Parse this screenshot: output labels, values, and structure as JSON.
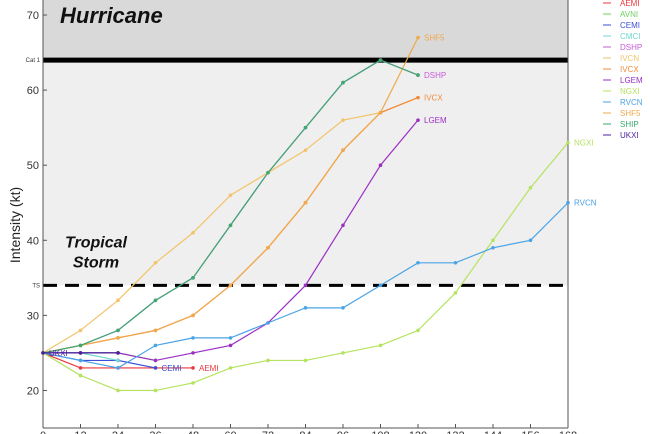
{
  "chart_data": {
    "type": "line",
    "ylabel": "Intensity (kt)",
    "xlim": [
      0,
      168
    ],
    "ylim": [
      15,
      72
    ],
    "x_ticks": [
      "0",
      "12",
      "24",
      "36",
      "48",
      "60",
      "72",
      "84",
      "96",
      "108",
      "120",
      "132",
      "144",
      "156",
      "168"
    ],
    "y_ticks": [
      "20",
      "30",
      "40",
      "50",
      "60",
      "70"
    ],
    "y_tick_values": [
      20,
      30,
      40,
      50,
      60,
      70
    ],
    "grid": false,
    "legend_position": "outside-top-right",
    "thresholds": [
      {
        "label": "Cat 1",
        "value": 64
      },
      {
        "label": "TS",
        "value": 34
      }
    ],
    "regions": [
      {
        "label": "Hurricane",
        "from": 64,
        "to": 72,
        "color": "#d9d9d9"
      },
      {
        "label": "Tropical Storm",
        "from": 34,
        "to": 64,
        "color": "#efefef"
      }
    ],
    "series": [
      {
        "name": "AEMI",
        "color": "#e8383d",
        "x": [
          0,
          12,
          24,
          36,
          48
        ],
        "values": [
          25,
          23,
          23,
          23,
          23
        ]
      },
      {
        "name": "AVNI",
        "color": "#6fcf5f",
        "x": [
          0,
          12,
          24,
          36
        ],
        "values": [
          25,
          25,
          25,
          24
        ]
      },
      {
        "name": "CEMI",
        "color": "#3a4fd6",
        "x": [
          0,
          12,
          24,
          36
        ],
        "values": [
          25,
          24,
          24,
          23
        ]
      },
      {
        "name": "CMCI",
        "color": "#6fd9d0",
        "x": [
          0,
          12,
          24
        ],
        "values": [
          25,
          25,
          24
        ]
      },
      {
        "name": "DSHP",
        "color": "#c75bd8",
        "x": [
          0,
          12,
          24,
          36,
          48,
          60,
          72,
          84,
          96,
          108,
          120
        ],
        "values": [
          25,
          26,
          28,
          32,
          35,
          42,
          49,
          55,
          61,
          64,
          62
        ]
      },
      {
        "name": "IVCN",
        "color": "#f2c46a",
        "x": [
          0,
          12,
          24,
          36,
          48,
          60,
          72,
          84,
          96,
          108,
          120
        ],
        "values": [
          25,
          28,
          32,
          37,
          41,
          46,
          49,
          52,
          56,
          57,
          59
        ]
      },
      {
        "name": "IVCX",
        "color": "#f28a3c",
        "x": [
          0,
          12,
          24,
          36,
          48,
          60,
          72,
          84,
          96,
          108,
          120
        ],
        "values": [
          25,
          26,
          27,
          28,
          30,
          34,
          39,
          45,
          52,
          57,
          59
        ]
      },
      {
        "name": "LGEM",
        "color": "#9b2fc4",
        "x": [
          0,
          12,
          24,
          36,
          48,
          60,
          72,
          84,
          96,
          108,
          120
        ],
        "values": [
          25,
          25,
          25,
          24,
          25,
          26,
          29,
          34,
          42,
          50,
          56
        ]
      },
      {
        "name": "NGXI",
        "color": "#b5e35f",
        "x": [
          0,
          12,
          24,
          36,
          48,
          60,
          72,
          84,
          96,
          108,
          120,
          132,
          144,
          156,
          168
        ],
        "values": [
          25,
          22,
          20,
          20,
          21,
          23,
          24,
          24,
          25,
          26,
          28,
          33,
          40,
          47,
          53
        ]
      },
      {
        "name": "RVCN",
        "color": "#4aa3e6",
        "x": [
          0,
          12,
          24,
          36,
          48,
          60,
          72,
          84,
          96,
          108,
          120,
          132,
          144,
          156,
          168
        ],
        "values": [
          25,
          24,
          23,
          26,
          27,
          27,
          29,
          31,
          31,
          34,
          37,
          37,
          39,
          40,
          45
        ]
      },
      {
        "name": "SHF5",
        "color": "#f0a84a",
        "x": [
          0,
          12,
          24,
          36,
          48,
          60,
          72,
          84,
          96,
          108,
          120
        ],
        "values": [
          25,
          26,
          27,
          28,
          30,
          34,
          39,
          45,
          52,
          57,
          67
        ]
      },
      {
        "name": "SHIP",
        "color": "#3aaa6e",
        "x": [
          0,
          12,
          24,
          36,
          48,
          60,
          72,
          84,
          96,
          108,
          120
        ],
        "values": [
          25,
          26,
          28,
          32,
          35,
          42,
          49,
          55,
          61,
          64,
          62
        ]
      },
      {
        "name": "UKXI",
        "color": "#4b1f9e",
        "x": [
          0,
          12,
          24
        ],
        "values": [
          25,
          25,
          25
        ]
      }
    ],
    "end_labels": [
      {
        "text": "AEMI",
        "series": "AEMI",
        "x": 48,
        "y": 23
      },
      {
        "text": "CEMI",
        "series": "CEMI",
        "x": 36,
        "y": 23
      },
      {
        "text": "SHF5",
        "series": "SHF5",
        "x": 120,
        "y": 67
      },
      {
        "text": "DSHP",
        "series": "DSHP",
        "x": 120,
        "y": 62
      },
      {
        "text": "IVCX",
        "series": "IVCX",
        "x": 120,
        "y": 59
      },
      {
        "text": "LGEM",
        "series": "LGEM",
        "x": 120,
        "y": 56
      },
      {
        "text": "NGXI",
        "series": "NGXI",
        "x": 168,
        "y": 53
      },
      {
        "text": "RVCN",
        "series": "RVCN",
        "x": 168,
        "y": 45
      },
      {
        "text": "UKXI",
        "series": "UKXI",
        "x": 0,
        "y": 25
      }
    ]
  }
}
